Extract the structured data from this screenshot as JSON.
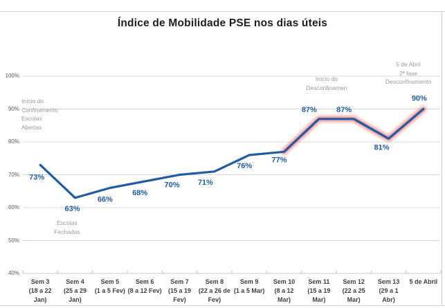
{
  "chart": {
    "title": "Índice de Mobilidade PSE nos dias úteis"
  },
  "chart_data": {
    "type": "line",
    "title": "Índice de Mobilidade PSE nos dias úteis",
    "categories": [
      "Sem 3\n(18 a 22\nJan)",
      "Sem 4\n(25 a 29\nJan)",
      "Sem 5\n(1 a 5 Fev)",
      "Sem 6\n(8 a 12 Fev)",
      "Sem 7\n(15 a 19\nFev)",
      "Sem 8\n(22 a 26 de\nFev)",
      "Sem 9\n(1 a 5 Mar)",
      "Sem 10\n(8 a 12\nMar)",
      "Sem 11\n(15 a 19\nMar)",
      "Sem 12\n(22 a 25\nMar)",
      "Sem 13\n(29 a 1\nAbr)",
      "5 de Abril"
    ],
    "values": [
      73,
      63,
      66,
      68,
      70,
      71,
      76,
      77,
      87,
      87,
      81,
      90
    ],
    "data_labels": [
      "73%",
      "63%",
      "66%",
      "68%",
      "70%",
      "71%",
      "76%",
      "77%",
      "87%",
      "87%",
      "81%",
      "90%"
    ],
    "unit": "%",
    "ylim": [
      40,
      100
    ],
    "yticks": [
      "40%",
      "50%",
      "60%",
      "70%",
      "80%",
      "90%",
      "100%"
    ],
    "grid": true,
    "legend": "none",
    "highlight_from_index": 7,
    "colors": {
      "line": "#1f5ca8",
      "data_label": "#1f5ca8",
      "highlight_glow": "#f1564f",
      "gridline": "#d9d9d9",
      "axis": "#c9c9c9",
      "tick": "#c2c2c2"
    },
    "annotations": [
      {
        "id": "inicio-confinamento",
        "text": "Início do\nConfinamento\nEscolas\nAbertas"
      },
      {
        "id": "escolas-fechadas",
        "text": "Escolas\nFechadas"
      },
      {
        "id": "inicio-desconfinamento",
        "text": "Início do\nDesconfinamen"
      },
      {
        "id": "segunda-fase",
        "text": "5 de Abril\n2ª fase\nDesconfinamento"
      }
    ]
  }
}
